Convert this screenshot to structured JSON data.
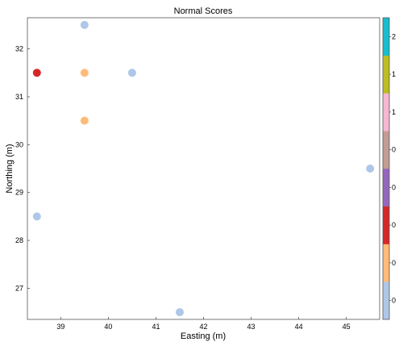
{
  "chart_data": {
    "type": "scatter",
    "title": "Normal Scores",
    "xlabel": "Easting (m)",
    "ylabel": "Northing (m)",
    "xlim": [
      38.3,
      45.7
    ],
    "ylim": [
      26.35,
      32.65
    ],
    "xticks": [
      "39",
      "40",
      "41",
      "42",
      "43",
      "44",
      "45"
    ],
    "yticks": [
      "27",
      "28",
      "29",
      "30",
      "31",
      "32"
    ],
    "grid": false,
    "points": [
      {
        "x": 39.5,
        "y": 32.5,
        "color": "#aec7e8"
      },
      {
        "x": 38.5,
        "y": 31.5,
        "color": "#d62728"
      },
      {
        "x": 39.5,
        "y": 31.5,
        "color": "#ffbb78"
      },
      {
        "x": 40.5,
        "y": 31.5,
        "color": "#aec7e8"
      },
      {
        "x": 39.5,
        "y": 30.5,
        "color": "#ffbb78"
      },
      {
        "x": 45.5,
        "y": 29.5,
        "color": "#aec7e8"
      },
      {
        "x": 38.5,
        "y": 28.5,
        "color": "#aec7e8"
      },
      {
        "x": 41.5,
        "y": 26.5,
        "color": "#aec7e8"
      }
    ],
    "colorbar": {
      "segments_bottom_to_top": [
        "#aec7e8",
        "#ffbb78",
        "#d62728",
        "#9467bd",
        "#c49c94",
        "#f7b6d2",
        "#bcbd22",
        "#17becf"
      ],
      "tick_labels_bottom_to_top": [
        "0",
        "0",
        "0",
        "0",
        "0",
        "1",
        "1",
        "2"
      ]
    }
  }
}
